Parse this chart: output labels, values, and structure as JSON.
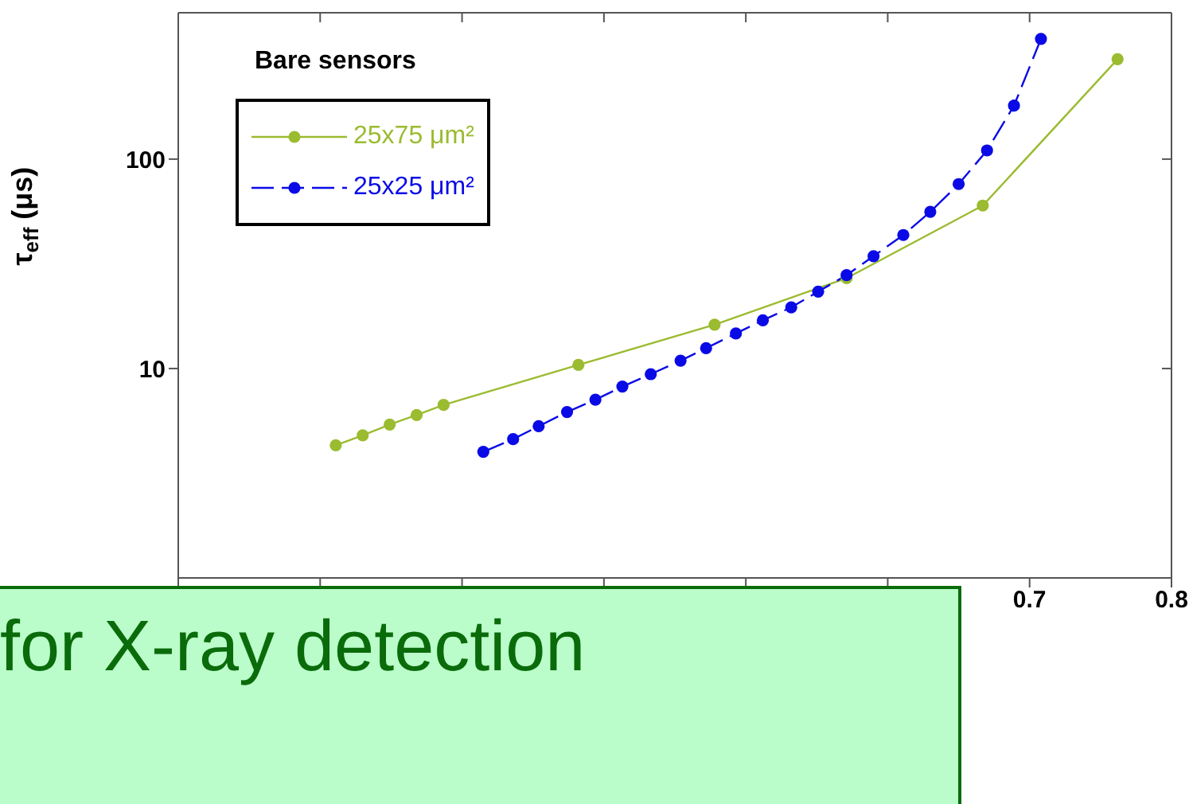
{
  "chart_data": {
    "type": "line",
    "ylabel": "τ$_{eff}$ (μs)",
    "legend_title": "Bare sensors",
    "legend": "top left",
    "marker": "circle",
    "log": "y",
    "xlim": [
      0.1,
      0.8
    ],
    "xticks": [
      {
        "value": 0.1,
        "label": null
      },
      {
        "value": 0.2,
        "label": null
      },
      {
        "value": 0.3,
        "label": null
      },
      {
        "value": 0.4,
        "label": null
      },
      {
        "value": 0.5,
        "label": null
      },
      {
        "value": 0.6,
        "label": null
      },
      0.7,
      0.8
    ],
    "ylim": [
      1,
      500
    ],
    "yticks": [
      10,
      100
    ],
    "annotations": [
      "for X-ray detection"
    ],
    "series": [
      {
        "name": "25x75 μm²",
        "color": "#9bbb30",
        "line_style": "solid",
        "x": [
          0.211,
          0.23,
          0.249,
          0.268,
          0.287,
          0.382,
          0.478,
          0.571,
          0.667,
          0.762
        ],
        "values": [
          4.3,
          4.8,
          5.4,
          6.0,
          6.7,
          10.4,
          16.2,
          27,
          60,
          300
        ]
      },
      {
        "name": "25x25 μm²",
        "color": "#0a0ae6",
        "line_style": "dashed",
        "x": [
          0.315,
          0.336,
          0.354,
          0.374,
          0.394,
          0.413,
          0.433,
          0.454,
          0.472,
          0.493,
          0.512,
          0.532,
          0.551,
          0.571,
          0.59,
          0.611,
          0.63,
          0.65,
          0.67,
          0.689,
          0.708
        ],
        "values": [
          4.0,
          4.6,
          5.3,
          6.2,
          7.1,
          8.2,
          9.4,
          10.9,
          12.5,
          14.7,
          17,
          19.6,
          23.3,
          27.9,
          34.4,
          43.4,
          56,
          76,
          110,
          180,
          375
        ]
      }
    ]
  }
}
